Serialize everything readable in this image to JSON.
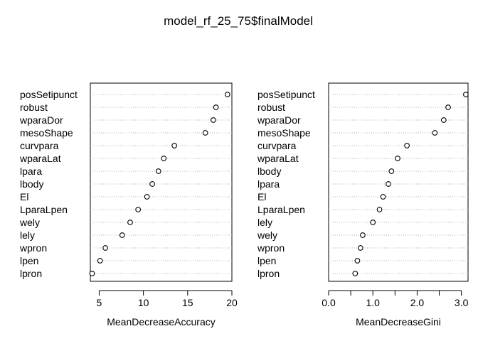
{
  "title": "model_rf_25_75$finalModel",
  "chart_data": [
    {
      "type": "scatter",
      "subtype": "dotchart",
      "xlabel": "MeanDecreaseAccuracy",
      "xlim": [
        4,
        20
      ],
      "xticks": [
        5,
        10,
        15,
        20
      ],
      "grid": "dotted horizontal",
      "categories": [
        "posSetipunct",
        "robust",
        "wparaDor",
        "mesoShape",
        "curvpara",
        "wparaLat",
        "lpara",
        "lbody",
        "El",
        "LparaLpen",
        "wely",
        "lely",
        "wpron",
        "lpen",
        "lpron"
      ],
      "values": [
        19.5,
        18.2,
        17.9,
        17.0,
        13.5,
        12.3,
        11.7,
        11.0,
        10.4,
        9.4,
        8.5,
        7.6,
        5.7,
        5.1,
        4.2
      ]
    },
    {
      "type": "scatter",
      "subtype": "dotchart",
      "xlabel": "MeanDecreaseGini",
      "xlim": [
        0,
        3.15
      ],
      "xticks": [
        0.0,
        0.5,
        1.0,
        1.5,
        2.0,
        2.5,
        3.0
      ],
      "xtick_labels": [
        "0.0",
        "",
        "1.0",
        "",
        "2.0",
        "",
        "3.0"
      ],
      "grid": "dotted horizontal",
      "categories": [
        "posSetipunct",
        "robust",
        "wparaDor",
        "mesoShape",
        "curvpara",
        "wparaLat",
        "lbody",
        "lpara",
        "El",
        "LparaLpen",
        "lely",
        "wely",
        "wpron",
        "lpen",
        "lpron"
      ],
      "values": [
        3.1,
        2.7,
        2.6,
        2.4,
        1.77,
        1.56,
        1.42,
        1.35,
        1.23,
        1.15,
        1.0,
        0.77,
        0.72,
        0.65,
        0.6
      ]
    }
  ]
}
